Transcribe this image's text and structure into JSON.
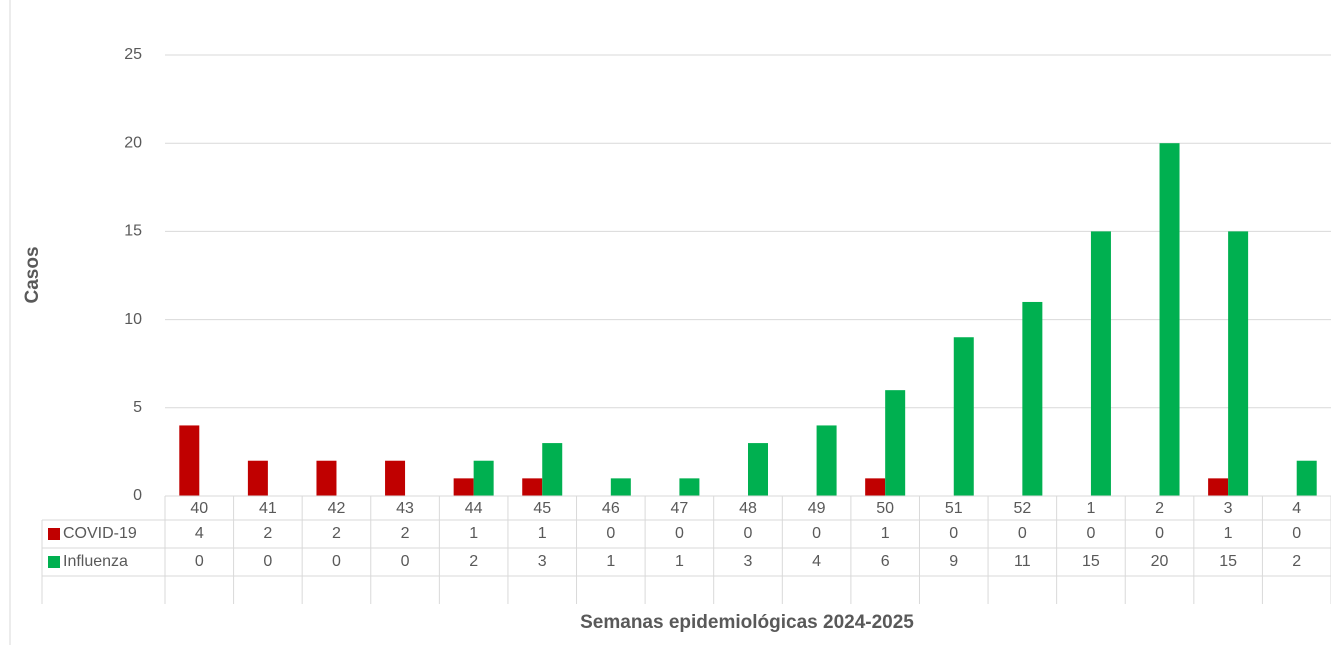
{
  "chart_data": {
    "type": "bar",
    "x_label": "Semanas epidemiológicas 2024-2025",
    "y_label": "Casos",
    "categories": [
      "40",
      "41",
      "42",
      "43",
      "44",
      "45",
      "46",
      "47",
      "48",
      "49",
      "50",
      "51",
      "52",
      "1",
      "2",
      "3",
      "4"
    ],
    "series": [
      {
        "name": "COVID-19",
        "color": "#c00000",
        "values": [
          4,
          2,
          2,
          2,
          1,
          1,
          0,
          0,
          0,
          0,
          1,
          0,
          0,
          0,
          0,
          1,
          0
        ]
      },
      {
        "name": "Influenza",
        "color": "#00b050",
        "values": [
          0,
          0,
          0,
          0,
          2,
          3,
          1,
          1,
          3,
          4,
          6,
          9,
          11,
          15,
          20,
          15,
          2
        ]
      }
    ],
    "ylim": [
      0,
      25
    ],
    "yticks": [
      0,
      5,
      10,
      15,
      20,
      25
    ],
    "grid": true
  }
}
